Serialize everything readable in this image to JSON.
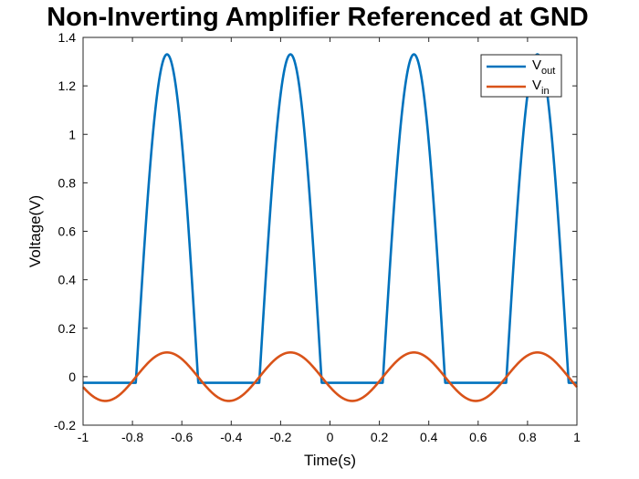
{
  "chart_data": {
    "type": "line",
    "title": "Non-Inverting Amplifier Referenced at GND",
    "xlabel": "Time(s)",
    "ylabel": "Voltage(V)",
    "xlim": [
      -1,
      1
    ],
    "ylim": [
      -0.2,
      1.4
    ],
    "xticks": [
      -1,
      -0.8,
      -0.6,
      -0.4,
      -0.2,
      0,
      0.2,
      0.4,
      0.6,
      0.8,
      1
    ],
    "xtick_labels": [
      "-1",
      "-0.8",
      "-0.6",
      "-0.4",
      "-0.2",
      "0",
      "0.2",
      "0.4",
      "0.6",
      "0.8",
      "1"
    ],
    "yticks": [
      -0.2,
      0,
      0.2,
      0.4,
      0.6,
      0.8,
      1,
      1.2,
      1.4
    ],
    "ytick_labels": [
      "-0.2",
      "0",
      "0.2",
      "0.4",
      "0.6",
      "0.8",
      "1",
      "1.2",
      "1.4"
    ],
    "grid": false,
    "legend_position": "top-right",
    "signal": {
      "frequency_hz": 2,
      "vin_amplitude": 0.1,
      "vin_peak_time": -0.66,
      "vout_gain": 13.3,
      "vout_floor": -0.025
    },
    "series": [
      {
        "name": "V_out",
        "legend_main": "V",
        "legend_sub": "out",
        "color": "#0072BD",
        "peaks": [
          {
            "x": -0.66,
            "y": 1.33
          },
          {
            "x": -0.16,
            "y": 1.33
          },
          {
            "x": 0.34,
            "y": 1.33
          },
          {
            "x": 0.84,
            "y": 1.33
          }
        ],
        "floor": -0.025
      },
      {
        "name": "V_in",
        "legend_main": "V",
        "legend_sub": "in",
        "color": "#D95319",
        "peaks": [
          {
            "x": -0.66,
            "y": 0.1
          },
          {
            "x": -0.16,
            "y": 0.1
          },
          {
            "x": 0.34,
            "y": 0.1
          },
          {
            "x": 0.84,
            "y": 0.1
          }
        ],
        "troughs": [
          {
            "x": -0.91,
            "y": -0.1
          },
          {
            "x": -0.41,
            "y": -0.1
          },
          {
            "x": 0.09,
            "y": -0.1
          },
          {
            "x": 0.59,
            "y": -0.1
          }
        ]
      }
    ]
  }
}
